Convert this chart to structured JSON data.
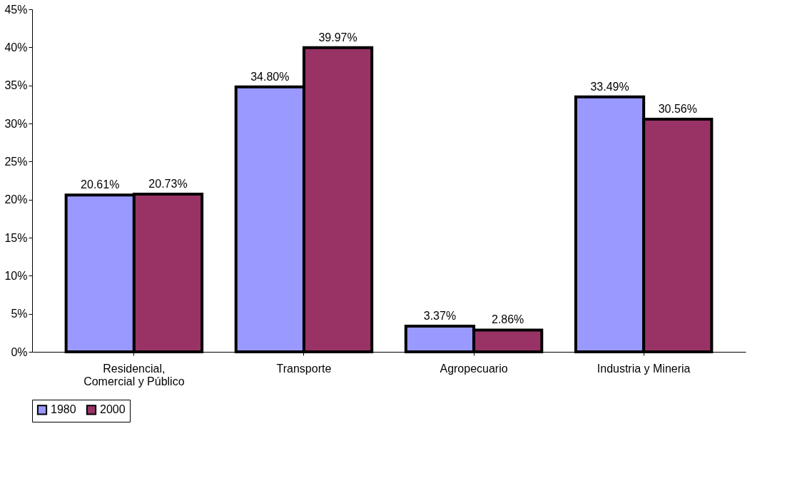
{
  "chart_data": {
    "type": "bar",
    "categories": [
      "Residencial,\nComercial y Público",
      "Transporte",
      "Agropecuario",
      "Industria y Mineria"
    ],
    "series": [
      {
        "name": "1980",
        "color": "#9999ff",
        "values": [
          20.61,
          34.8,
          3.37,
          33.49
        ]
      },
      {
        "name": "2000",
        "color": "#993366",
        "values": [
          20.73,
          39.97,
          2.86,
          30.56
        ]
      }
    ],
    "value_labels": [
      [
        "20.61%",
        "34.80%",
        "3.37%",
        "33.49%"
      ],
      [
        "20.73%",
        "39.97%",
        "2.86%",
        "30.56%"
      ]
    ],
    "ylim": [
      0,
      45
    ],
    "yticks": [
      {
        "value": 0,
        "label": "0%"
      },
      {
        "value": 5,
        "label": "5%"
      },
      {
        "value": 10,
        "label": "10%"
      },
      {
        "value": 15,
        "label": "15%"
      },
      {
        "value": 20,
        "label": "20%"
      },
      {
        "value": 25,
        "label": "25%"
      },
      {
        "value": 30,
        "label": "30%"
      },
      {
        "value": 35,
        "label": "35%"
      },
      {
        "value": 40,
        "label": "40%"
      },
      {
        "value": 45,
        "label": "45%"
      }
    ],
    "grid": false,
    "legend": "bottom"
  }
}
